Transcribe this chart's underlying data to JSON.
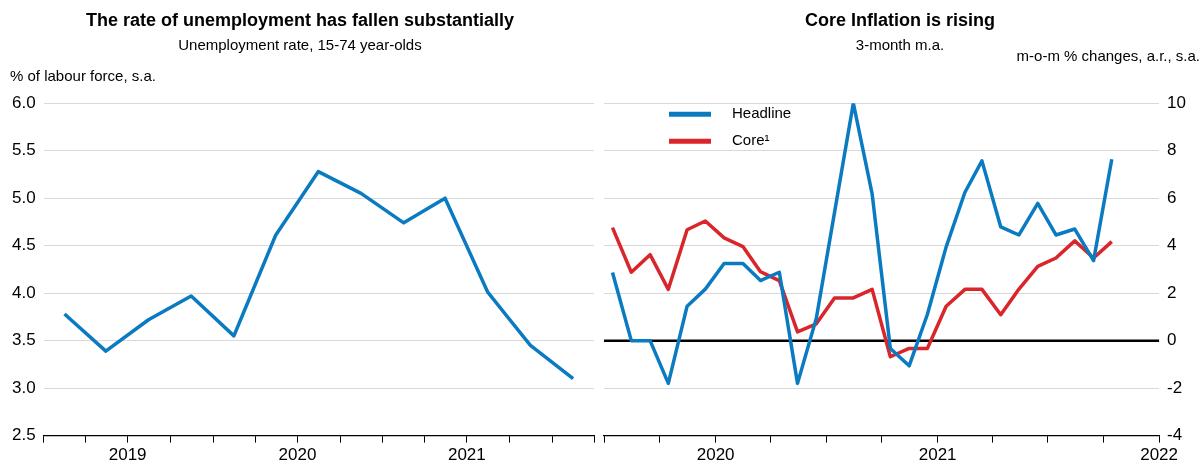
{
  "chart_data": [
    {
      "type": "line",
      "title": "The rate of unemployment has fallen substantially",
      "subtitle": "Unemployment rate, 15-74 year-olds",
      "ylabel": "% of labour force, s.a.",
      "x": [
        "2019-02-15",
        "2019-05-15",
        "2019-08-15",
        "2019-11-15",
        "2020-02-15",
        "2020-05-15",
        "2020-08-15",
        "2020-11-15",
        "2021-02-15",
        "2021-05-15",
        "2021-08-15",
        "2021-11-15",
        "2022-02-15"
      ],
      "series": [
        {
          "color": "#0a7bc1",
          "values": [
            3.78,
            3.39,
            3.72,
            3.97,
            3.55,
            4.61,
            5.28,
            5.05,
            4.74,
            5.0,
            4.01,
            3.45,
            3.1
          ]
        }
      ],
      "xlim": [
        "2019-01-01",
        "2022-04-01"
      ],
      "xticks": [
        {
          "value": "2019-01-01",
          "label": null
        },
        {
          "value": "2019-04-01",
          "label": null
        },
        {
          "value": "2019-07-01",
          "label": "2019"
        },
        {
          "value": "2019-10-01",
          "label": null
        },
        {
          "value": "2020-01-01",
          "label": null
        },
        {
          "value": "2020-04-01",
          "label": null
        },
        {
          "value": "2020-07-01",
          "label": "2020"
        },
        {
          "value": "2020-10-01",
          "label": null
        },
        {
          "value": "2021-01-01",
          "label": null
        },
        {
          "value": "2021-04-01",
          "label": null
        },
        {
          "value": "2021-07-01",
          "label": "2021"
        },
        {
          "value": "2021-10-01",
          "label": null
        },
        {
          "value": "2022-01-01",
          "label": null
        },
        {
          "value": "2022-04-01",
          "label": null
        }
      ],
      "ylim": [
        2.5,
        6
      ],
      "yticks": [
        {
          "value": 2.5,
          "label": "2.5"
        },
        {
          "value": 3,
          "label": "3.0"
        },
        {
          "value": 3.5,
          "label": "3.5"
        },
        {
          "value": 4,
          "label": "4.0"
        },
        {
          "value": 4.5,
          "label": "4.5"
        },
        {
          "value": 5,
          "label": "5.0"
        },
        {
          "value": 5.5,
          "label": "5.5"
        },
        {
          "value": 6,
          "label": "6.0"
        }
      ],
      "grid": "y"
    },
    {
      "type": "line",
      "title": "Core Inflation is rising",
      "subtitle": "3-month m.a.",
      "y2label": "m-o-m % changes, a.r., s.a.",
      "x": [
        "2019-07-15",
        "2019-08-15",
        "2019-09-15",
        "2019-10-15",
        "2019-11-15",
        "2019-12-15",
        "2020-01-15",
        "2020-02-15",
        "2020-03-15",
        "2020-04-15",
        "2020-05-15",
        "2020-06-15",
        "2020-07-15",
        "2020-08-15",
        "2020-09-15",
        "2020-10-15",
        "2020-11-15",
        "2020-12-15",
        "2021-01-15",
        "2021-02-15",
        "2021-03-15",
        "2021-04-15",
        "2021-05-15",
        "2021-06-15",
        "2021-07-15",
        "2021-08-15",
        "2021-09-15",
        "2021-10-15"
      ],
      "series": [
        {
          "name": "Headline",
          "color": "#0a7bc1",
          "axis": "y2",
          "values": [
            2.87,
            0,
            0,
            -1.8,
            1.45,
            2.17,
            3.25,
            3.25,
            2.53,
            2.88,
            -1.8,
            0.94,
            5.4,
            10,
            6.18,
            -0.33,
            -1.06,
            1.1,
            3.95,
            6.25,
            7.57,
            4.79,
            4.45,
            5.78,
            4.45,
            4.7,
            3.37,
            7.64
          ]
        },
        {
          "name": "Core¹",
          "color": "#d9262b",
          "axis": "y2",
          "values": [
            4.76,
            2.88,
            3.62,
            2.16,
            4.67,
            5.04,
            4.33,
            3.96,
            2.9,
            2.53,
            0.37,
            0.71,
            1.8,
            1.8,
            2.16,
            -0.68,
            -0.33,
            -0.33,
            1.45,
            2.16,
            2.16,
            1.09,
            2.17,
            3.13,
            3.48,
            4.2,
            3.48,
            4.17
          ]
        }
      ],
      "xlim": [
        "2019-07-01",
        "2022-01-01"
      ],
      "xticks": [
        {
          "value": "2019-07-01",
          "label": null
        },
        {
          "value": "2019-10-01",
          "label": null
        },
        {
          "value": "2020-01-01",
          "label": "2020"
        },
        {
          "value": "2020-04-01",
          "label": null
        },
        {
          "value": "2020-07-01",
          "label": null
        },
        {
          "value": "2020-10-01",
          "label": null
        },
        {
          "value": "2021-01-01",
          "label": "2021"
        },
        {
          "value": "2021-04-01",
          "label": null
        },
        {
          "value": "2021-07-01",
          "label": null
        },
        {
          "value": "2021-10-01",
          "label": null
        },
        {
          "value": "2022-01-01",
          "label": "2022"
        }
      ],
      "y2lim": [
        -4,
        10
      ],
      "y2ticks": [
        -4,
        -2,
        0,
        2,
        4,
        6,
        8,
        10
      ],
      "ref_lines": [
        {
          "axis": "y2",
          "value": 0,
          "color": "#000000"
        }
      ],
      "grid": "y",
      "legend": "top left"
    }
  ]
}
